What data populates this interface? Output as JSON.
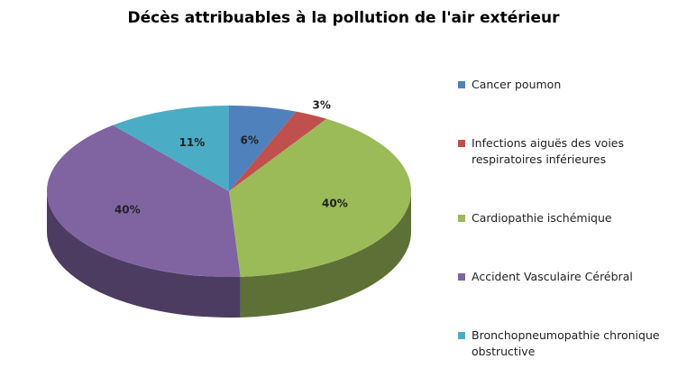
{
  "chart_data": {
    "type": "pie",
    "title": "Décès attribuables à la pollution de l'air extérieur",
    "categories": [
      "Cancer poumon",
      "Infections aiguës des voies respiratoires inférieures",
      "Cardiopathie ischémique",
      "Accident Vasculaire Cérébral",
      "Bronchopneumopathie chronique obstructive"
    ],
    "values": [
      6,
      3,
      40,
      40,
      11
    ],
    "value_labels": [
      "6%",
      "3%",
      "40%",
      "40%",
      "11%"
    ],
    "colors": [
      "#4f81bd",
      "#c0504d",
      "#9bbb59",
      "#8064a2",
      "#4bacc6"
    ],
    "legend": "right"
  }
}
